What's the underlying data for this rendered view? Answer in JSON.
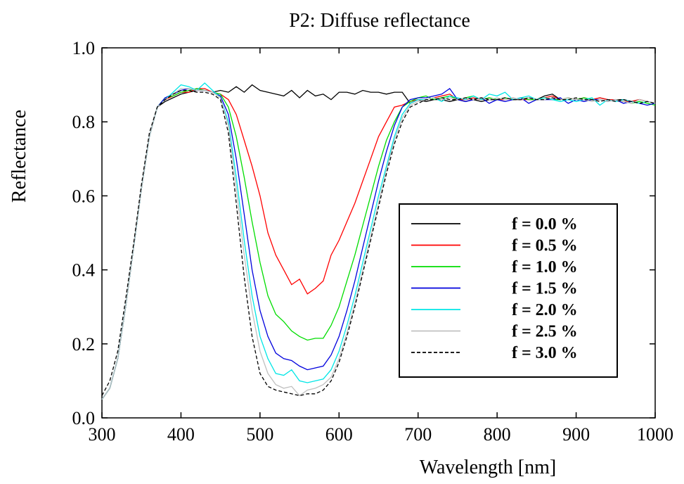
{
  "chart_data": {
    "type": "line",
    "title": "P2: Diffuse reflectance",
    "xlabel": "Wavelength [nm]",
    "ylabel": "Reflectance",
    "xlim": [
      300,
      1000
    ],
    "ylim": [
      0.0,
      1.0
    ],
    "xticks": [
      300,
      400,
      500,
      600,
      700,
      800,
      900,
      1000
    ],
    "yticks": [
      0.0,
      0.2,
      0.4,
      0.6,
      0.8,
      1.0
    ],
    "xtick_labels": [
      "300",
      "400",
      "500",
      "600",
      "700",
      "800",
      "900",
      "1000"
    ],
    "ytick_labels": [
      "0.0",
      "0.2",
      "0.4",
      "0.6",
      "0.8",
      "1.0"
    ],
    "grid": false,
    "legend_position": "right",
    "series": [
      {
        "name": "f = 0.0 %",
        "color": "#000000",
        "dash": "solid",
        "x": [
          300,
          310,
          320,
          330,
          340,
          350,
          360,
          370,
          380,
          390,
          400,
          410,
          420,
          430,
          440,
          450,
          460,
          470,
          480,
          490,
          500,
          510,
          520,
          530,
          540,
          550,
          560,
          570,
          580,
          590,
          600,
          610,
          620,
          630,
          640,
          650,
          660,
          670,
          680,
          690,
          700,
          710,
          720,
          730,
          740,
          750,
          760,
          770,
          780,
          790,
          800,
          810,
          820,
          830,
          840,
          850,
          860,
          870,
          880,
          890,
          900,
          910,
          920,
          930,
          940,
          950,
          960,
          970,
          980,
          990,
          1000
        ],
        "y": [
          0.05,
          0.08,
          0.16,
          0.3,
          0.46,
          0.62,
          0.76,
          0.84,
          0.855,
          0.865,
          0.875,
          0.88,
          0.885,
          0.885,
          0.88,
          0.885,
          0.88,
          0.895,
          0.88,
          0.9,
          0.885,
          0.88,
          0.875,
          0.87,
          0.885,
          0.865,
          0.885,
          0.87,
          0.875,
          0.86,
          0.88,
          0.88,
          0.875,
          0.885,
          0.88,
          0.88,
          0.875,
          0.88,
          0.88,
          0.85,
          0.86,
          0.855,
          0.86,
          0.86,
          0.855,
          0.86,
          0.855,
          0.86,
          0.855,
          0.86,
          0.86,
          0.865,
          0.86,
          0.86,
          0.865,
          0.86,
          0.87,
          0.875,
          0.86,
          0.865,
          0.86,
          0.865,
          0.86,
          0.865,
          0.86,
          0.86,
          0.86,
          0.855,
          0.86,
          0.855,
          0.85
        ]
      },
      {
        "name": "f = 0.5 %",
        "color": "#ff0000",
        "dash": "solid",
        "x": [
          300,
          310,
          320,
          330,
          340,
          350,
          360,
          370,
          380,
          390,
          400,
          410,
          420,
          430,
          440,
          450,
          460,
          470,
          480,
          490,
          500,
          510,
          520,
          530,
          540,
          550,
          560,
          570,
          580,
          590,
          600,
          610,
          620,
          630,
          640,
          650,
          660,
          670,
          680,
          690,
          700,
          710,
          720,
          730,
          740,
          750,
          760,
          770,
          780,
          790,
          800,
          810,
          820,
          830,
          840,
          850,
          860,
          870,
          880,
          890,
          900,
          910,
          920,
          930,
          940,
          950,
          960,
          970,
          980,
          990,
          1000
        ],
        "y": [
          0.05,
          0.08,
          0.16,
          0.3,
          0.46,
          0.62,
          0.76,
          0.84,
          0.86,
          0.87,
          0.88,
          0.88,
          0.89,
          0.89,
          0.88,
          0.875,
          0.86,
          0.82,
          0.75,
          0.68,
          0.6,
          0.5,
          0.44,
          0.4,
          0.36,
          0.375,
          0.335,
          0.35,
          0.37,
          0.44,
          0.48,
          0.53,
          0.58,
          0.64,
          0.7,
          0.76,
          0.8,
          0.84,
          0.845,
          0.855,
          0.86,
          0.86,
          0.865,
          0.87,
          0.875,
          0.86,
          0.86,
          0.865,
          0.86,
          0.865,
          0.86,
          0.86,
          0.865,
          0.86,
          0.86,
          0.86,
          0.865,
          0.87,
          0.86,
          0.865,
          0.86,
          0.865,
          0.86,
          0.865,
          0.86,
          0.86,
          0.855,
          0.855,
          0.86,
          0.855,
          0.85
        ]
      },
      {
        "name": "f = 1.0 %",
        "color": "#00dd00",
        "dash": "solid",
        "x": [
          300,
          310,
          320,
          330,
          340,
          350,
          360,
          370,
          380,
          390,
          400,
          410,
          420,
          430,
          440,
          450,
          460,
          470,
          480,
          490,
          500,
          510,
          520,
          530,
          540,
          550,
          560,
          570,
          580,
          590,
          600,
          610,
          620,
          630,
          640,
          650,
          660,
          670,
          680,
          690,
          700,
          710,
          720,
          730,
          740,
          750,
          760,
          770,
          780,
          790,
          800,
          810,
          820,
          830,
          840,
          850,
          860,
          870,
          880,
          890,
          900,
          910,
          920,
          930,
          940,
          950,
          960,
          970,
          980,
          990,
          1000
        ],
        "y": [
          0.05,
          0.08,
          0.16,
          0.3,
          0.46,
          0.62,
          0.76,
          0.84,
          0.865,
          0.87,
          0.88,
          0.885,
          0.89,
          0.885,
          0.88,
          0.875,
          0.84,
          0.76,
          0.65,
          0.53,
          0.42,
          0.33,
          0.28,
          0.26,
          0.235,
          0.22,
          0.21,
          0.215,
          0.215,
          0.25,
          0.3,
          0.37,
          0.44,
          0.52,
          0.6,
          0.68,
          0.75,
          0.8,
          0.84,
          0.855,
          0.865,
          0.87,
          0.86,
          0.865,
          0.87,
          0.86,
          0.865,
          0.87,
          0.86,
          0.865,
          0.86,
          0.865,
          0.86,
          0.865,
          0.86,
          0.86,
          0.865,
          0.86,
          0.86,
          0.865,
          0.86,
          0.865,
          0.86,
          0.86,
          0.855,
          0.86,
          0.855,
          0.85,
          0.855,
          0.85,
          0.845
        ]
      },
      {
        "name": "f = 1.5 %",
        "color": "#0000dd",
        "dash": "solid",
        "x": [
          300,
          310,
          320,
          330,
          340,
          350,
          360,
          370,
          380,
          390,
          400,
          410,
          420,
          430,
          440,
          450,
          460,
          470,
          480,
          490,
          500,
          510,
          520,
          530,
          540,
          550,
          560,
          570,
          580,
          590,
          600,
          610,
          620,
          630,
          640,
          650,
          660,
          670,
          680,
          690,
          700,
          710,
          720,
          730,
          740,
          750,
          760,
          770,
          780,
          790,
          800,
          810,
          820,
          830,
          840,
          850,
          860,
          870,
          880,
          890,
          900,
          910,
          920,
          930,
          940,
          950,
          960,
          970,
          980,
          990,
          1000
        ],
        "y": [
          0.05,
          0.08,
          0.16,
          0.3,
          0.46,
          0.62,
          0.76,
          0.84,
          0.865,
          0.875,
          0.885,
          0.89,
          0.885,
          0.885,
          0.88,
          0.87,
          0.82,
          0.7,
          0.55,
          0.4,
          0.29,
          0.22,
          0.175,
          0.16,
          0.155,
          0.14,
          0.13,
          0.135,
          0.14,
          0.17,
          0.22,
          0.29,
          0.37,
          0.46,
          0.55,
          0.64,
          0.72,
          0.79,
          0.84,
          0.86,
          0.865,
          0.865,
          0.87,
          0.875,
          0.89,
          0.86,
          0.855,
          0.86,
          0.865,
          0.85,
          0.86,
          0.855,
          0.86,
          0.865,
          0.85,
          0.86,
          0.86,
          0.86,
          0.865,
          0.85,
          0.86,
          0.855,
          0.86,
          0.86,
          0.855,
          0.86,
          0.85,
          0.855,
          0.85,
          0.845,
          0.85
        ]
      },
      {
        "name": "f = 2.0 %",
        "color": "#00e6e6",
        "dash": "solid",
        "x": [
          300,
          310,
          320,
          330,
          340,
          350,
          360,
          370,
          380,
          390,
          400,
          410,
          420,
          430,
          440,
          450,
          460,
          470,
          480,
          490,
          500,
          510,
          520,
          530,
          540,
          550,
          560,
          570,
          580,
          590,
          600,
          610,
          620,
          630,
          640,
          650,
          660,
          670,
          680,
          690,
          700,
          710,
          720,
          730,
          740,
          750,
          760,
          770,
          780,
          790,
          800,
          810,
          820,
          830,
          840,
          850,
          860,
          870,
          880,
          890,
          900,
          910,
          920,
          930,
          940,
          950,
          960,
          970,
          980,
          990,
          1000
        ],
        "y": [
          0.05,
          0.08,
          0.16,
          0.3,
          0.46,
          0.62,
          0.76,
          0.84,
          0.86,
          0.88,
          0.9,
          0.895,
          0.885,
          0.905,
          0.885,
          0.865,
          0.8,
          0.65,
          0.48,
          0.33,
          0.22,
          0.16,
          0.12,
          0.115,
          0.13,
          0.1,
          0.095,
          0.1,
          0.105,
          0.13,
          0.18,
          0.25,
          0.33,
          0.42,
          0.51,
          0.6,
          0.68,
          0.76,
          0.82,
          0.85,
          0.86,
          0.86,
          0.865,
          0.855,
          0.87,
          0.865,
          0.86,
          0.87,
          0.86,
          0.875,
          0.87,
          0.88,
          0.86,
          0.865,
          0.87,
          0.86,
          0.865,
          0.86,
          0.855,
          0.86,
          0.855,
          0.86,
          0.865,
          0.845,
          0.86,
          0.855,
          0.86,
          0.855,
          0.85,
          0.855,
          0.85
        ]
      },
      {
        "name": "f = 2.5 %",
        "color": "#c0c0c0",
        "dash": "solid",
        "x": [
          300,
          310,
          320,
          330,
          340,
          350,
          360,
          370,
          380,
          390,
          400,
          410,
          420,
          430,
          440,
          450,
          460,
          470,
          480,
          490,
          500,
          510,
          520,
          530,
          540,
          550,
          560,
          570,
          580,
          590,
          600,
          610,
          620,
          630,
          640,
          650,
          660,
          670,
          680,
          690,
          700,
          710,
          720,
          730,
          740,
          750,
          760,
          770,
          780,
          790,
          800,
          810,
          820,
          830,
          840,
          850,
          860,
          870,
          880,
          890,
          900,
          910,
          920,
          930,
          940,
          950,
          960,
          970,
          980,
          990,
          1000
        ],
        "y": [
          0.05,
          0.08,
          0.16,
          0.3,
          0.46,
          0.62,
          0.76,
          0.84,
          0.86,
          0.875,
          0.89,
          0.89,
          0.885,
          0.885,
          0.88,
          0.865,
          0.79,
          0.62,
          0.44,
          0.29,
          0.18,
          0.12,
          0.09,
          0.08,
          0.085,
          0.06,
          0.075,
          0.08,
          0.09,
          0.11,
          0.16,
          0.23,
          0.31,
          0.4,
          0.49,
          0.58,
          0.67,
          0.75,
          0.81,
          0.845,
          0.855,
          0.86,
          0.865,
          0.86,
          0.865,
          0.86,
          0.865,
          0.86,
          0.865,
          0.86,
          0.865,
          0.86,
          0.865,
          0.86,
          0.865,
          0.86,
          0.86,
          0.865,
          0.86,
          0.865,
          0.86,
          0.86,
          0.855,
          0.86,
          0.855,
          0.86,
          0.855,
          0.85,
          0.86,
          0.855,
          0.85
        ]
      },
      {
        "name": "f = 3.0 %",
        "color": "#000000",
        "dash": "dashed",
        "x": [
          300,
          310,
          320,
          330,
          340,
          350,
          360,
          370,
          380,
          390,
          400,
          410,
          420,
          430,
          440,
          450,
          460,
          470,
          480,
          490,
          500,
          510,
          520,
          530,
          540,
          550,
          560,
          570,
          580,
          590,
          600,
          610,
          620,
          630,
          640,
          650,
          660,
          670,
          680,
          690,
          700,
          710,
          720,
          730,
          740,
          750,
          760,
          770,
          780,
          790,
          800,
          810,
          820,
          830,
          840,
          850,
          860,
          870,
          880,
          890,
          900,
          910,
          920,
          930,
          940,
          950,
          960,
          970,
          980,
          990,
          1000
        ],
        "y": [
          0.06,
          0.1,
          0.18,
          0.32,
          0.47,
          0.63,
          0.77,
          0.84,
          0.86,
          0.875,
          0.885,
          0.885,
          0.88,
          0.88,
          0.875,
          0.86,
          0.77,
          0.58,
          0.38,
          0.22,
          0.12,
          0.085,
          0.075,
          0.07,
          0.065,
          0.06,
          0.065,
          0.065,
          0.075,
          0.1,
          0.15,
          0.22,
          0.3,
          0.39,
          0.48,
          0.57,
          0.66,
          0.74,
          0.8,
          0.84,
          0.85,
          0.86,
          0.86,
          0.865,
          0.86,
          0.86,
          0.865,
          0.86,
          0.865,
          0.86,
          0.86,
          0.865,
          0.86,
          0.86,
          0.865,
          0.86,
          0.86,
          0.865,
          0.86,
          0.86,
          0.865,
          0.86,
          0.86,
          0.855,
          0.86,
          0.855,
          0.86,
          0.855,
          0.85,
          0.855,
          0.85
        ]
      }
    ]
  }
}
